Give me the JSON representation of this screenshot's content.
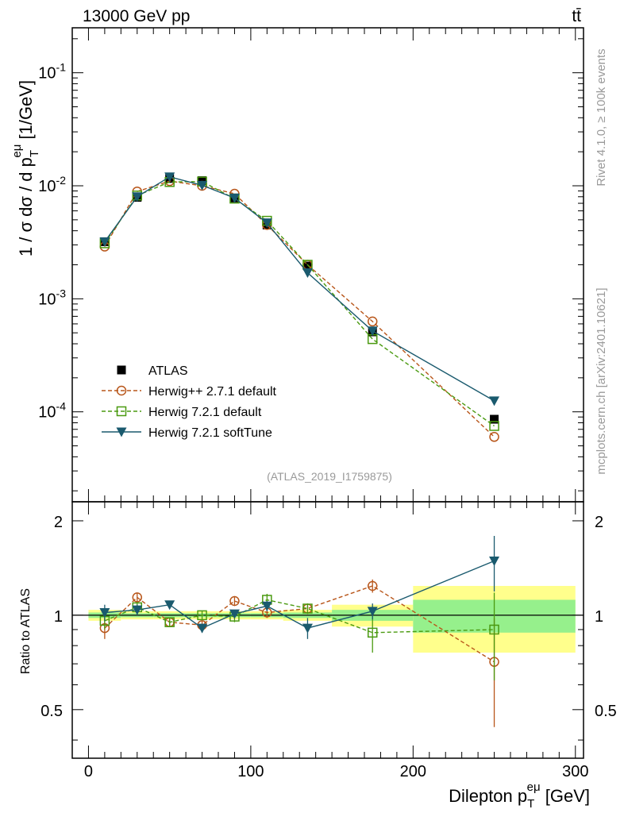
{
  "header": {
    "left": "13000 GeV pp",
    "right": "tt̄"
  },
  "side": {
    "rivet": "Rivet 4.1.0, ≥ 100k events",
    "mcplots": "mcplots.cern.ch [arXiv:2401.10621]"
  },
  "analysis_id": "(ATLAS_2019_I1759875)",
  "chart_data": [
    {
      "type": "line",
      "title": "13000 GeV pp",
      "ylabel": "1 / σ dσ / d p_T^eμ [1/GeV]",
      "yscale": "log",
      "ylim": [
        1.6e-05,
        0.25
      ],
      "xlim": [
        -10,
        305
      ],
      "ytick_labels": [
        "10^-4",
        "10^-3",
        "10^-2",
        "10^-1"
      ],
      "x": [
        10,
        30,
        50,
        70,
        90,
        110,
        135,
        175,
        250
      ],
      "series": [
        {
          "name": "ATLAS",
          "color": "#000000",
          "marker": "square-filled",
          "line": "none",
          "values": [
            0.0032,
            0.0079,
            0.0116,
            0.0111,
            0.0078,
            0.0045,
            0.00195,
            0.00051,
            8.6e-05
          ]
        },
        {
          "name": "Herwig++ 2.7.1 default",
          "color": "#b8561a",
          "marker": "circle-open",
          "line": "dashed",
          "values": [
            0.0029,
            0.0089,
            0.011,
            0.01,
            0.0085,
            0.0045,
            0.002,
            0.00063,
            6e-05
          ]
        },
        {
          "name": "Herwig 7.2.1 default",
          "color": "#4a9a10",
          "marker": "square-open",
          "line": "dashed",
          "values": [
            0.0031,
            0.0082,
            0.0108,
            0.0109,
            0.0077,
            0.0049,
            0.002,
            0.00044,
            7.5e-05
          ]
        },
        {
          "name": "Herwig 7.2.1 softTune",
          "color": "#1a5a6e",
          "marker": "triangle-down-filled",
          "line": "solid",
          "values": [
            0.0032,
            0.008,
            0.012,
            0.0101,
            0.0078,
            0.0047,
            0.0017,
            0.00052,
            0.000125
          ]
        }
      ],
      "legend": [
        "ATLAS",
        "Herwig++ 2.7.1 default",
        "Herwig 7.2.1 default",
        "Herwig 7.2.1 softTune"
      ]
    },
    {
      "type": "line",
      "ylabel": "Ratio to ATLAS",
      "ylim": [
        0.35,
        2.3
      ],
      "ytick_labels": [
        "0.5",
        "1",
        "2"
      ],
      "xlabel": "Dilepton p_T^eμ [GeV]",
      "xtick_labels": [
        "0",
        "100",
        "200",
        "300"
      ],
      "bins": [
        [
          0,
          20
        ],
        [
          20,
          40
        ],
        [
          40,
          60
        ],
        [
          60,
          80
        ],
        [
          80,
          100
        ],
        [
          100,
          120
        ],
        [
          120,
          150
        ],
        [
          150,
          200
        ],
        [
          200,
          300
        ]
      ],
      "band_outer": [
        0.04,
        0.03,
        0.03,
        0.03,
        0.03,
        0.03,
        0.04,
        0.08,
        0.24
      ],
      "band_inner": [
        0.02,
        0.015,
        0.015,
        0.015,
        0.015,
        0.015,
        0.02,
        0.04,
        0.12
      ],
      "series": [
        {
          "name": "Herwig++ 2.7.1 default",
          "values": [
            0.91,
            1.14,
            0.95,
            0.93,
            1.11,
            1.02,
            1.05,
            1.24,
            0.71
          ],
          "err": [
            0.07,
            0.04,
            0.03,
            0.03,
            0.04,
            0.04,
            0.04,
            0.06,
            0.27
          ]
        },
        {
          "name": "Herwig 7.2.1 default",
          "values": [
            0.96,
            1.06,
            0.95,
            1.0,
            0.99,
            1.12,
            1.05,
            0.88,
            0.9
          ],
          "err": [
            0.06,
            0.04,
            0.03,
            0.03,
            0.04,
            0.05,
            0.04,
            0.12,
            0.28
          ]
        },
        {
          "name": "Herwig 7.2.1 softTune",
          "values": [
            1.02,
            1.04,
            1.08,
            0.91,
            1.01,
            1.07,
            0.91,
            1.03,
            1.49
          ],
          "err": [
            0.06,
            0.04,
            0.03,
            0.03,
            0.03,
            0.04,
            0.07,
            0.06,
            0.3
          ]
        }
      ]
    }
  ]
}
